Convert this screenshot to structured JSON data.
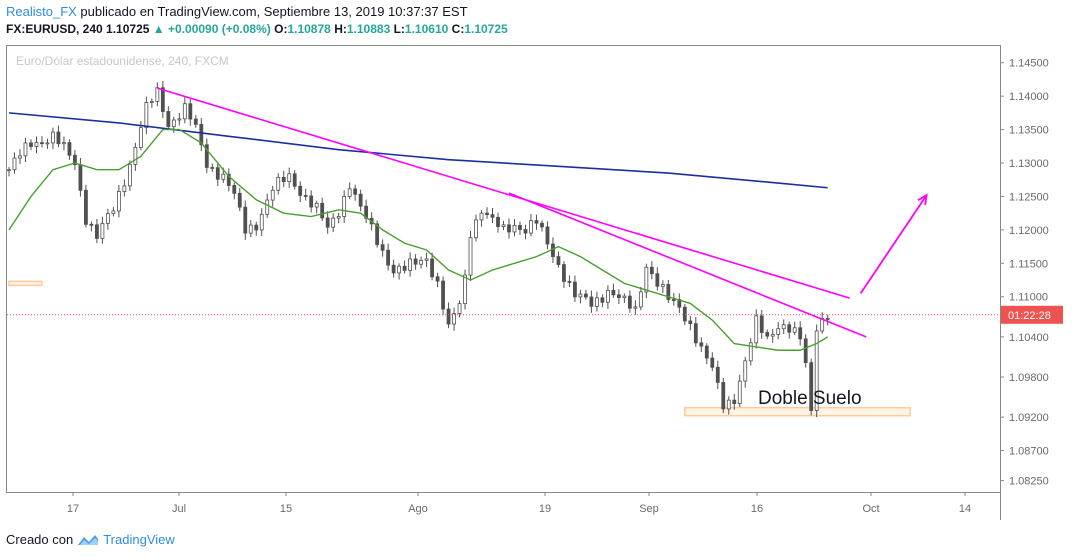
{
  "header": {
    "author": "Realisto_FX",
    "published": " publicado en TradingView.com, Septiembre 13, 2019 10:37:37 EST",
    "symbol": "FX:EURUSD, 240",
    "last": "1.10725",
    "change": "+0.00090 (+0.08%)",
    "o_label": "O:",
    "o": "1.10878",
    "h_label": "H:",
    "h": "1.10883",
    "l_label": "L:",
    "l": "1.10610",
    "c_label": "C:",
    "c": "1.10725"
  },
  "footer": {
    "created": "Creado con",
    "brand": "TradingView"
  },
  "colors": {
    "up": "#26a69a",
    "down": "#ef5350",
    "candle": "#505050",
    "trend": "#ff00ff",
    "ma_slow": "#1c2fa0",
    "ma_fast": "#4aa02c",
    "zone": "#ffcc99"
  },
  "chart_data": {
    "type": "candlestick",
    "title": "Euro/Dólar estadounidense, 240, FXCM",
    "x_ticks": [
      "17",
      "Jul",
      "15",
      "Ago",
      "19",
      "Sep",
      "16",
      "Oct",
      "14"
    ],
    "y_ticks": [
      "1.14500",
      "1.14000",
      "1.13500",
      "1.13000",
      "1.12500",
      "1.12000",
      "1.11500",
      "1.11000",
      "1.10400",
      "1.09800",
      "1.09200",
      "1.08700",
      "1.08250"
    ],
    "ylim": [
      1.0808,
      1.1475
    ],
    "countdown_label": "01:22:28",
    "current_price": 1.1073,
    "annotation": "Doble Suelo",
    "close_path": [
      [
        0,
        1.129
      ],
      [
        4,
        1.133
      ],
      [
        8,
        1.134
      ],
      [
        12,
        1.13
      ],
      [
        14,
        1.122
      ],
      [
        16,
        1.119
      ],
      [
        19,
        1.123
      ],
      [
        22,
        1.13
      ],
      [
        25,
        1.138
      ],
      [
        27,
        1.1405
      ],
      [
        29,
        1.136
      ],
      [
        32,
        1.138
      ],
      [
        34,
        1.135
      ],
      [
        36,
        1.13
      ],
      [
        39,
        1.128
      ],
      [
        41,
        1.125
      ],
      [
        43,
        1.12
      ],
      [
        45,
        1.121
      ],
      [
        48,
        1.126
      ],
      [
        51,
        1.128
      ],
      [
        54,
        1.125
      ],
      [
        56,
        1.123
      ],
      [
        58,
        1.12
      ],
      [
        60,
        1.123
      ],
      [
        62,
        1.127
      ],
      [
        64,
        1.123
      ],
      [
        66,
        1.12
      ],
      [
        68,
        1.117
      ],
      [
        70,
        1.114
      ],
      [
        72,
        1.114
      ],
      [
        74,
        1.115
      ],
      [
        76,
        1.116
      ],
      [
        78,
        1.112
      ],
      [
        80,
        1.105
      ],
      [
        82,
        1.109
      ],
      [
        83,
        1.113
      ],
      [
        84,
        1.12
      ],
      [
        86,
        1.123
      ],
      [
        88,
        1.121
      ],
      [
        90,
        1.12
      ],
      [
        92,
        1.121
      ],
      [
        94,
        1.12
      ],
      [
        96,
        1.121
      ],
      [
        98,
        1.118
      ],
      [
        100,
        1.115
      ],
      [
        103,
        1.11
      ],
      [
        106,
        1.109
      ],
      [
        109,
        1.111
      ],
      [
        112,
        1.109
      ],
      [
        114,
        1.108
      ],
      [
        116,
        1.115
      ],
      [
        118,
        1.112
      ],
      [
        120,
        1.1095
      ],
      [
        122,
        1.1085
      ],
      [
        124,
        1.106
      ],
      [
        126,
        1.102
      ],
      [
        128,
        1.099
      ],
      [
        130,
        1.094
      ],
      [
        132,
        1.095
      ],
      [
        134,
        1.1
      ],
      [
        136,
        1.106
      ],
      [
        138,
        1.104
      ],
      [
        140,
        1.106
      ],
      [
        142,
        1.105
      ],
      [
        144,
        1.1035
      ],
      [
        145,
        1.1
      ],
      [
        146,
        1.093
      ],
      [
        147,
        1.106
      ],
      [
        149,
        1.1073
      ]
    ],
    "ma_fast": [
      [
        0,
        1.12
      ],
      [
        4,
        1.125
      ],
      [
        8,
        1.129
      ],
      [
        12,
        1.13
      ],
      [
        16,
        1.129
      ],
      [
        20,
        1.129
      ],
      [
        24,
        1.131
      ],
      [
        28,
        1.135
      ],
      [
        31,
        1.135
      ],
      [
        35,
        1.133
      ],
      [
        40,
        1.128
      ],
      [
        45,
        1.1245
      ],
      [
        50,
        1.1225
      ],
      [
        55,
        1.122
      ],
      [
        60,
        1.123
      ],
      [
        64,
        1.1225
      ],
      [
        68,
        1.12
      ],
      [
        72,
        1.118
      ],
      [
        76,
        1.117
      ],
      [
        80,
        1.114
      ],
      [
        84,
        1.1125
      ],
      [
        88,
        1.114
      ],
      [
        92,
        1.115
      ],
      [
        96,
        1.116
      ],
      [
        100,
        1.1175
      ],
      [
        104,
        1.116
      ],
      [
        108,
        1.114
      ],
      [
        112,
        1.112
      ],
      [
        116,
        1.111
      ],
      [
        120,
        1.11
      ],
      [
        124,
        1.109
      ],
      [
        128,
        1.1065
      ],
      [
        132,
        1.103
      ],
      [
        136,
        1.1025
      ],
      [
        140,
        1.102
      ],
      [
        144,
        1.102
      ],
      [
        147,
        1.103
      ],
      [
        149,
        1.104
      ]
    ],
    "ma_slow": [
      [
        0,
        1.1375
      ],
      [
        20,
        1.136
      ],
      [
        40,
        1.134
      ],
      [
        60,
        1.132
      ],
      [
        80,
        1.1305
      ],
      [
        100,
        1.1295
      ],
      [
        120,
        1.1285
      ],
      [
        140,
        1.127
      ],
      [
        149,
        1.1263
      ]
    ],
    "trendlines": [
      {
        "from": [
          27,
          1.1412
        ],
        "to": [
          153,
          1.1098
        ]
      },
      {
        "from": [
          91,
          1.1255
        ],
        "to": [
          156,
          1.104
        ]
      }
    ],
    "projection_arrow": {
      "from": [
        155,
        1.1105
      ],
      "to": [
        167,
        1.1252
      ]
    },
    "zones": [
      {
        "x0": 0,
        "x1": 6,
        "y0": 1.1123,
        "y1": 1.1117
      },
      {
        "x0": 123,
        "x1": 164,
        "y0": 1.0934,
        "y1": 1.0922
      }
    ]
  }
}
